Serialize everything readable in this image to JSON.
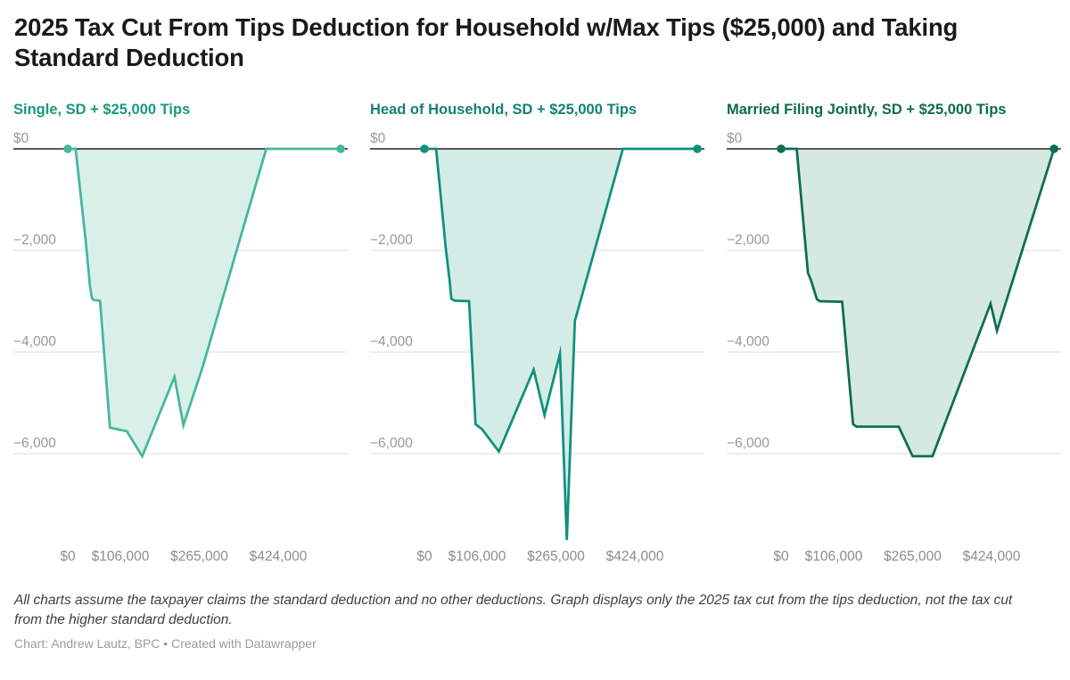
{
  "header": {
    "title": "2025 Tax Cut From Tips Deduction for Household w/Max Tips ($25,000) and Taking Standard Deduction"
  },
  "footer": {
    "note": "All charts assume the taxpayer claims the standard deduction and no other deductions. Graph displays only the 2025 tax cut from the tips deduction, not the tax cut from the higher standard deduction.",
    "byline": "Chart: Andrew Lautz, BPC • Created with Datawrapper"
  },
  "colors": {
    "zero_axis_line": "#222222",
    "gridline": "#e3e3e3",
    "y_tick_label": "#989898",
    "x_tick_label": "#8c8c8c"
  },
  "chart_data": [
    {
      "type": "area",
      "id": "single",
      "title": "Single, SD + $25,000 Tips",
      "title_color": "#189a7c",
      "line_color": "#45b79c",
      "fill_color": "#d9f0e8",
      "xlim": [
        0,
        550000
      ],
      "ylim": [
        -8300,
        0
      ],
      "grid": "horizontal",
      "legend": "none",
      "x_ticks": [
        {
          "value": 0,
          "label": "$0"
        },
        {
          "value": 106000,
          "label": "$106,000"
        },
        {
          "value": 265000,
          "label": "$265,000"
        },
        {
          "value": 424000,
          "label": "$424,000"
        }
      ],
      "y_ticks": [
        {
          "value": 0,
          "label": "$0"
        },
        {
          "value": -2000,
          "label": "−2,000"
        },
        {
          "value": -4000,
          "label": "−4,000"
        },
        {
          "value": -6000,
          "label": "−6,000"
        }
      ],
      "points": [
        [
          0,
          0
        ],
        [
          15750,
          0
        ],
        [
          36000,
          -1790
        ],
        [
          45000,
          -2720
        ],
        [
          49000,
          -2950
        ],
        [
          52000,
          -2975
        ],
        [
          65000,
          -2990
        ],
        [
          85000,
          -5490
        ],
        [
          119000,
          -5560
        ],
        [
          150000,
          -6050
        ],
        [
          215000,
          -4490
        ],
        [
          233000,
          -5440
        ],
        [
          271000,
          -4320
        ],
        [
          277000,
          -4120
        ],
        [
          400000,
          0
        ],
        [
          550000,
          0
        ]
      ]
    },
    {
      "type": "area",
      "id": "head-of-household",
      "title": "Head of Household, SD + $25,000 Tips",
      "title_color": "#12836f",
      "line_color": "#10907d",
      "fill_color": "#d3ece5",
      "xlim": [
        0,
        550000
      ],
      "ylim": [
        -8300,
        0
      ],
      "grid": "horizontal",
      "legend": "none",
      "x_ticks": [
        {
          "value": 0,
          "label": "$0"
        },
        {
          "value": 106000,
          "label": "$106,000"
        },
        {
          "value": 265000,
          "label": "$265,000"
        },
        {
          "value": 424000,
          "label": "$424,000"
        }
      ],
      "y_ticks": [
        {
          "value": 0,
          "label": "$0"
        },
        {
          "value": -2000,
          "label": "−2,000"
        },
        {
          "value": -4000,
          "label": "−4,000"
        },
        {
          "value": -6000,
          "label": "−6,000"
        }
      ],
      "points": [
        [
          0,
          0
        ],
        [
          23625,
          0
        ],
        [
          43000,
          -1950
        ],
        [
          51000,
          -2620
        ],
        [
          54000,
          -2950
        ],
        [
          61000,
          -2990
        ],
        [
          90000,
          -3000
        ],
        [
          103000,
          -5420
        ],
        [
          116000,
          -5520
        ],
        [
          150000,
          -5960
        ],
        [
          220000,
          -4350
        ],
        [
          242000,
          -5240
        ],
        [
          273000,
          -4030
        ],
        [
          287000,
          -7700
        ],
        [
          303000,
          -3390
        ],
        [
          400000,
          0
        ],
        [
          550000,
          0
        ]
      ]
    },
    {
      "type": "area",
      "id": "married-filing-jointly",
      "title": "Married Filing Jointly, SD + $25,000 Tips",
      "title_color": "#0d6b53",
      "line_color": "#0c6e52",
      "fill_color": "#d5e9e1",
      "xlim": [
        0,
        550000
      ],
      "ylim": [
        -8300,
        0
      ],
      "grid": "horizontal",
      "legend": "none",
      "x_ticks": [
        {
          "value": 0,
          "label": "$0"
        },
        {
          "value": 106000,
          "label": "$106,000"
        },
        {
          "value": 265000,
          "label": "$265,000"
        },
        {
          "value": 424000,
          "label": "$424,000"
        }
      ],
      "y_ticks": [
        {
          "value": 0,
          "label": "$0"
        },
        {
          "value": -2000,
          "label": "−2,000"
        },
        {
          "value": -4000,
          "label": "−4,000"
        },
        {
          "value": -6000,
          "label": "−6,000"
        }
      ],
      "points": [
        [
          0,
          0
        ],
        [
          31500,
          0
        ],
        [
          54000,
          -2440
        ],
        [
          60000,
          -2580
        ],
        [
          72000,
          -2960
        ],
        [
          78000,
          -3000
        ],
        [
          123000,
          -3010
        ],
        [
          145000,
          -5420
        ],
        [
          152000,
          -5470
        ],
        [
          237000,
          -5470
        ],
        [
          265000,
          -6050
        ],
        [
          305000,
          -6050
        ],
        [
          422000,
          -3050
        ],
        [
          435000,
          -3580
        ],
        [
          550000,
          0
        ]
      ]
    }
  ]
}
